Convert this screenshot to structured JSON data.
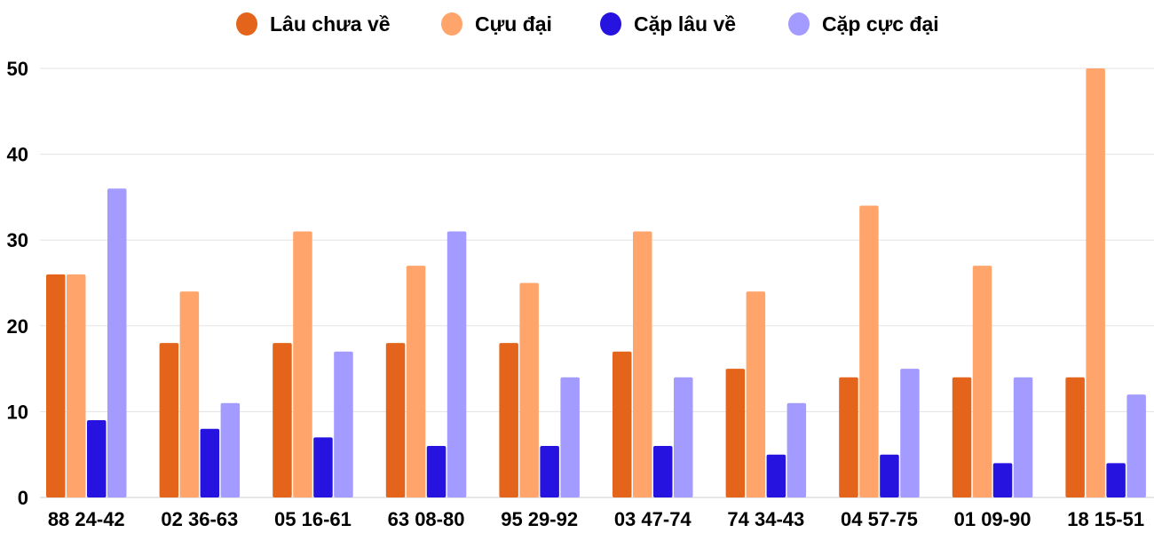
{
  "chart_data": {
    "type": "bar",
    "categories": [
      "88 24-42",
      "02 36-63",
      "05 16-61",
      "63 08-80",
      "95 29-92",
      "03 47-74",
      "74 34-43",
      "04 57-75",
      "01 09-90",
      "18 15-51"
    ],
    "series": [
      {
        "name": "Lâu chưa về",
        "color": "#E3641A",
        "values": [
          26,
          18,
          18,
          18,
          18,
          17,
          15,
          14,
          14,
          14
        ]
      },
      {
        "name": "Cựu đại",
        "color": "#FFA56B",
        "values": [
          26,
          24,
          31,
          27,
          25,
          31,
          24,
          34,
          27,
          50
        ]
      },
      {
        "name": "Cặp lâu về",
        "color": "#2613E0",
        "values": [
          9,
          8,
          7,
          6,
          6,
          6,
          5,
          5,
          4,
          4
        ]
      },
      {
        "name": "Cặp cực đại",
        "color": "#A39BFF",
        "values": [
          36,
          11,
          17,
          31,
          14,
          14,
          11,
          15,
          14,
          12
        ]
      }
    ],
    "yticks": [
      0,
      10,
      20,
      30,
      40,
      50
    ],
    "ylim": [
      0,
      50
    ],
    "grid": true,
    "legend": "top"
  }
}
